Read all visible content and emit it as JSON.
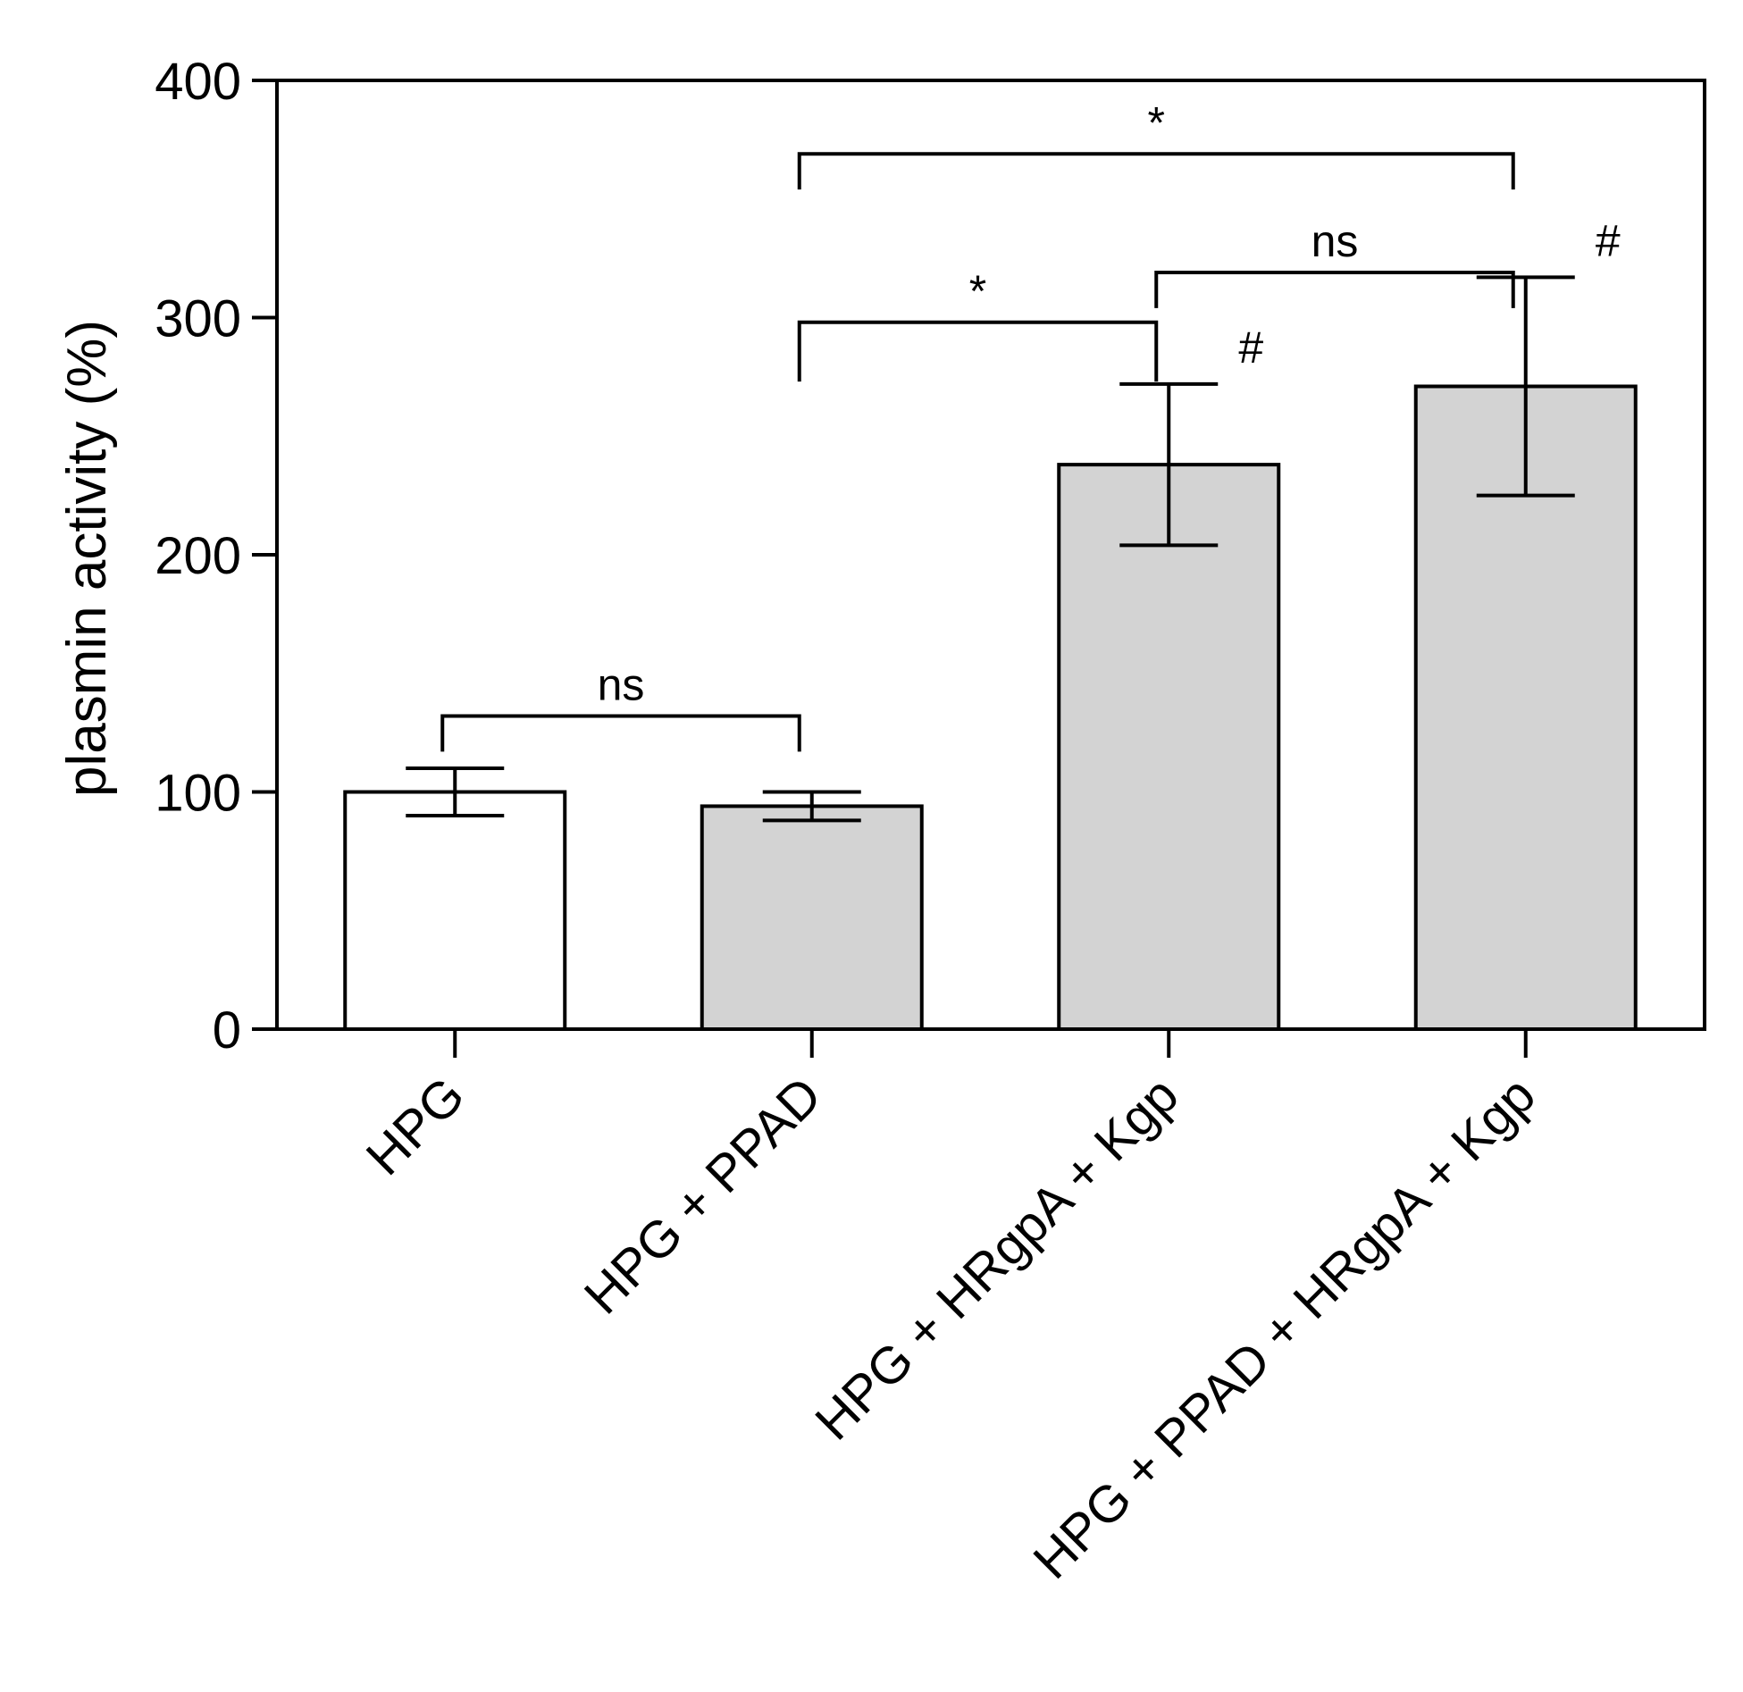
{
  "chart_data": {
    "type": "bar",
    "title": "",
    "xlabel": "",
    "ylabel": "plasmin activity (%)",
    "ylim": [
      0,
      400
    ],
    "yticks": [
      0,
      100,
      200,
      300,
      400
    ],
    "ytick_labels": [
      "0",
      "100",
      "200",
      "300",
      "400"
    ],
    "categories": [
      "HPG",
      "HPG + PPAD",
      "HPG + HRgpA + Kgp",
      "HPG + PPAD + HRgpA + Kgp"
    ],
    "values": [
      100,
      94,
      238,
      271
    ],
    "errors": [
      10,
      6,
      34,
      46
    ],
    "bar_colors": [
      "#ffffff",
      "#d3d3d3",
      "#d3d3d3",
      "#d3d3d3"
    ],
    "bar_edge_color": "#000000",
    "grid": false,
    "legend": "none",
    "markers": [
      "",
      "",
      "#",
      "#"
    ],
    "comparisons": [
      {
        "from": 0,
        "to": 1,
        "label": "ns"
      },
      {
        "from": 1,
        "to": 2,
        "label": "*"
      },
      {
        "from": 2,
        "to": 3,
        "label": "ns"
      },
      {
        "from": 1,
        "to": 3,
        "label": "*"
      }
    ]
  }
}
